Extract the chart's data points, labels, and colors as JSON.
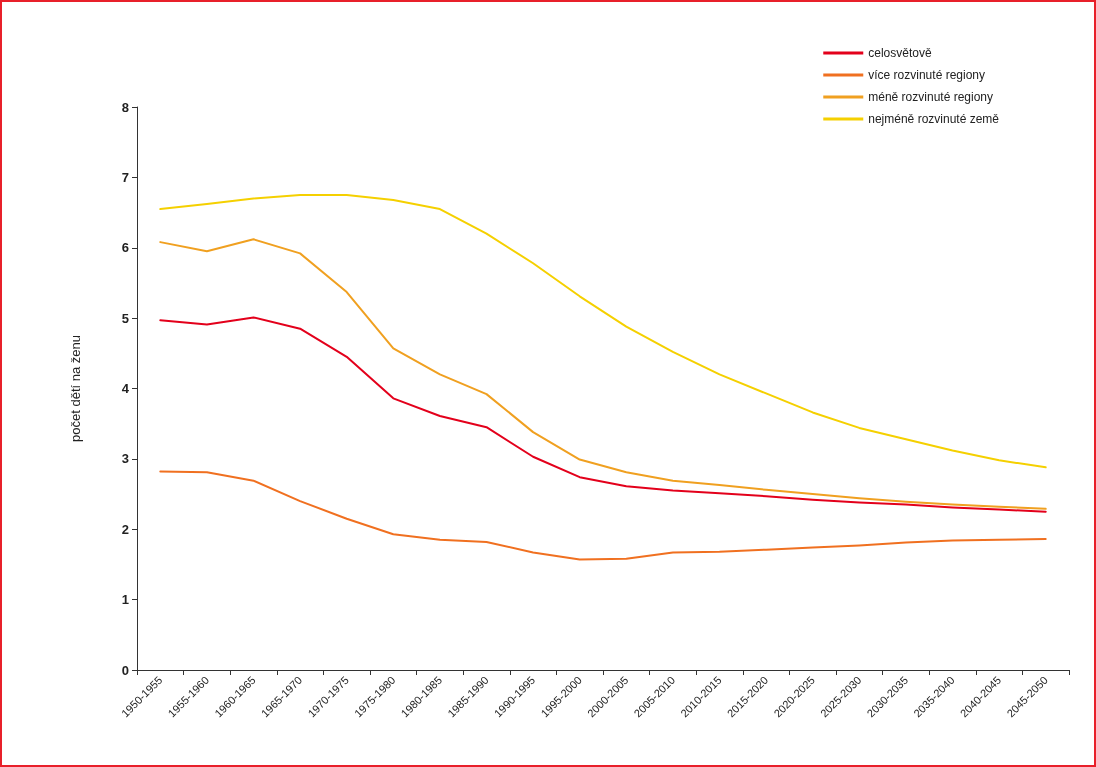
{
  "chart_data": {
    "type": "line",
    "ylabel": "počet dětí na ženu",
    "categories": [
      "1950-1955",
      "1955-1960",
      "1960-1965",
      "1965-1970",
      "1970-1975",
      "1975-1980",
      "1980-1985",
      "1985-1990",
      "1990-1995",
      "1995-2000",
      "2000-2005",
      "2005-2010",
      "2010-2015",
      "2015-2020",
      "2020-2025",
      "2025-2030",
      "2030-2035",
      "2035-2040",
      "2040-2045",
      "2045-2050"
    ],
    "series": [
      {
        "name": "celosvětově",
        "color": "#e3001b",
        "values": [
          4.97,
          4.91,
          5.01,
          4.85,
          4.45,
          3.86,
          3.61,
          3.45,
          3.03,
          2.74,
          2.61,
          2.55,
          2.51,
          2.47,
          2.42,
          2.38,
          2.35,
          2.31,
          2.28,
          2.25
        ]
      },
      {
        "name": "více rozvinuté regiony",
        "color": "#f07020",
        "values": [
          2.82,
          2.81,
          2.69,
          2.4,
          2.15,
          1.93,
          1.85,
          1.82,
          1.67,
          1.57,
          1.58,
          1.67,
          1.68,
          1.71,
          1.74,
          1.77,
          1.81,
          1.84,
          1.85,
          1.86
        ]
      },
      {
        "name": "méně rozvinuté regiony",
        "color": "#f0a020",
        "values": [
          6.08,
          5.95,
          6.12,
          5.92,
          5.37,
          4.57,
          4.2,
          3.92,
          3.38,
          2.99,
          2.81,
          2.69,
          2.63,
          2.56,
          2.5,
          2.44,
          2.39,
          2.35,
          2.32,
          2.29
        ]
      },
      {
        "name": "nejméně rozvinuté země",
        "color": "#f5d000",
        "values": [
          6.55,
          6.62,
          6.7,
          6.75,
          6.75,
          6.68,
          6.55,
          6.2,
          5.78,
          5.31,
          4.88,
          4.52,
          4.2,
          3.93,
          3.66,
          3.44,
          3.28,
          3.12,
          2.98,
          2.88
        ]
      }
    ],
    "ylim": [
      0,
      8
    ],
    "yticks": [
      0,
      1,
      2,
      3,
      4,
      5,
      6,
      7,
      8
    ],
    "grid": false,
    "legend": "top right",
    "marker": "none",
    "line_style": "solid"
  }
}
